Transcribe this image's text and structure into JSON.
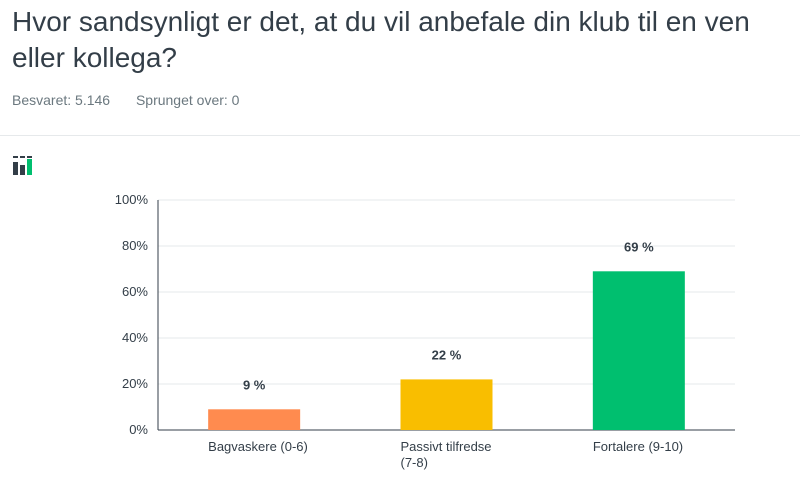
{
  "question": {
    "title": "Hvor sandsynligt er det, at du vil anbefale din klub til en ven eller kollega?"
  },
  "meta": {
    "answered": "Besvaret: 5.146",
    "skipped": "Sprunget over: 0"
  },
  "icons": {
    "chart_type": "bar-chart-icon"
  },
  "chart_data": {
    "type": "bar",
    "title": "",
    "xlabel": "",
    "ylabel": "",
    "ylim": [
      0,
      100
    ],
    "yticks": [
      "0%",
      "20%",
      "40%",
      "60%",
      "80%",
      "100%"
    ],
    "grid": true,
    "categories": [
      [
        "Bagvaskere (0-6)"
      ],
      [
        "Passivt tilfredse",
        "(7-8)"
      ],
      [
        "Fortalere (9-10)"
      ]
    ],
    "values": [
      9,
      22,
      69
    ],
    "value_labels": [
      "9 %",
      "22 %",
      "69 %"
    ],
    "colors": [
      "#ff8b4f",
      "#f9be00",
      "#00bf6f"
    ]
  }
}
